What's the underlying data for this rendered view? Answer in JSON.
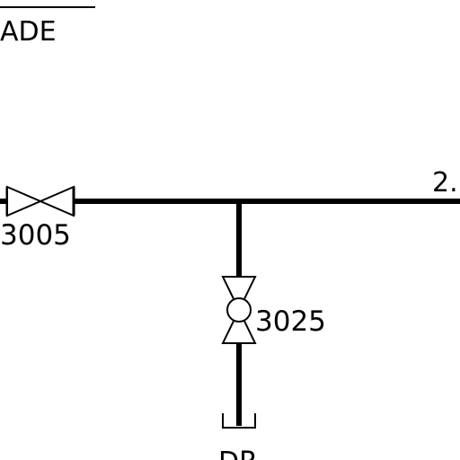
{
  "diagram": {
    "title_fragment": "ADE",
    "line_number_fragment": "2.",
    "drain_fragment": "DR",
    "valves": [
      {
        "tag": "3005",
        "type": "gate-valve",
        "orientation": "horizontal"
      },
      {
        "tag": "3025",
        "type": "globe-valve",
        "orientation": "vertical"
      }
    ]
  },
  "colors": {
    "background": "#ffffff",
    "line": "#000000"
  }
}
